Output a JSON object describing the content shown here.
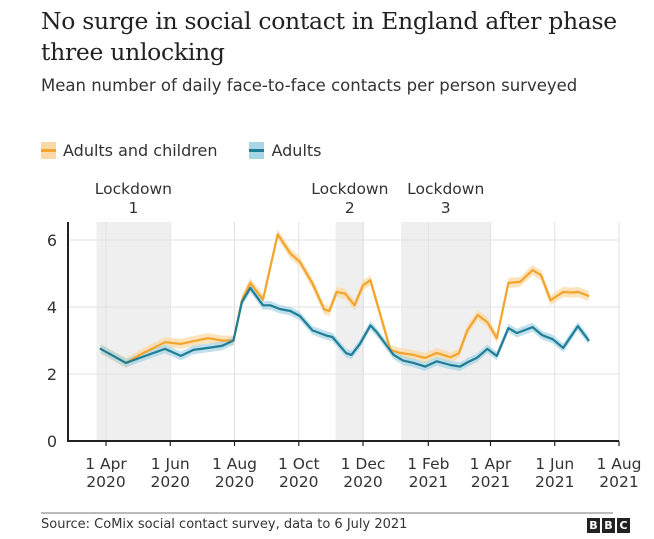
{
  "title": "No surge in social contact in England after phase three unlocking",
  "subtitle": "Mean number of daily face-to-face contacts per person surveyed",
  "legend": [
    {
      "label": "Adults and children",
      "color": "#f2a42d",
      "band_color": "#fbd9a6"
    },
    {
      "label": "Adults",
      "color": "#1f7d96",
      "band_color": "#a9d6e5"
    }
  ],
  "footer": {
    "source": "Source: CoMix social contact survey, data to 6 July 2021",
    "logo_letters": [
      "B",
      "B",
      "C"
    ]
  },
  "chart_data": {
    "type": "line",
    "title": "No surge in social contact in England after phase three unlocking",
    "subtitle": "Mean number of daily face-to-face contacts per person surveyed",
    "xlabel": "",
    "ylabel": "",
    "ylim": [
      0,
      6.5
    ],
    "yticks": [
      0,
      2,
      4,
      6
    ],
    "xlim": [
      "2020-03-15",
      "2021-08-01"
    ],
    "xticks": [
      {
        "date": "2020-04-01",
        "label": [
          "1 Apr",
          "2020"
        ]
      },
      {
        "date": "2020-06-01",
        "label": [
          "1 Jun",
          "2020"
        ]
      },
      {
        "date": "2020-08-01",
        "label": [
          "1 Aug",
          "2020"
        ]
      },
      {
        "date": "2020-10-01",
        "label": [
          "1 Oct",
          "2020"
        ]
      },
      {
        "date": "2020-12-01",
        "label": [
          "1 Dec",
          "2020"
        ]
      },
      {
        "date": "2021-02-01",
        "label": [
          "1 Feb",
          "2021"
        ]
      },
      {
        "date": "2021-04-01",
        "label": [
          "1 Apr",
          "2021"
        ]
      },
      {
        "date": "2021-06-01",
        "label": [
          "1 Jun",
          "2021"
        ]
      },
      {
        "date": "2021-08-01",
        "label": [
          "1 Aug",
          "2021"
        ]
      }
    ],
    "grid": true,
    "legend_position": "top-left",
    "annotations": [
      {
        "label": [
          "Lockdown",
          "1"
        ],
        "start": "2020-03-23",
        "end": "2020-06-01"
      },
      {
        "label": [
          "Lockdown",
          "2"
        ],
        "start": "2020-11-05",
        "end": "2020-12-02"
      },
      {
        "label": [
          "Lockdown",
          "3"
        ],
        "start": "2021-01-06",
        "end": "2021-04-01"
      }
    ],
    "series": [
      {
        "name": "Adults and children",
        "color": "#f2a42d",
        "band_halfwidth": 0.15,
        "points": [
          [
            "2020-03-27",
            2.75
          ],
          [
            "2020-04-20",
            2.33
          ],
          [
            "2020-05-03",
            2.57
          ],
          [
            "2020-05-27",
            2.95
          ],
          [
            "2020-06-11",
            2.9
          ],
          [
            "2020-06-23",
            2.98
          ],
          [
            "2020-07-07",
            3.07
          ],
          [
            "2020-07-20",
            3.0
          ],
          [
            "2020-07-31",
            3.0
          ],
          [
            "2020-08-08",
            4.2
          ],
          [
            "2020-08-16",
            4.72
          ],
          [
            "2020-08-28",
            4.22
          ],
          [
            "2020-09-11",
            6.17
          ],
          [
            "2020-09-23",
            5.6
          ],
          [
            "2020-10-02",
            5.35
          ],
          [
            "2020-10-14",
            4.7
          ],
          [
            "2020-10-25",
            3.93
          ],
          [
            "2020-10-30",
            3.88
          ],
          [
            "2020-11-06",
            4.45
          ],
          [
            "2020-11-14",
            4.4
          ],
          [
            "2020-11-23",
            4.05
          ],
          [
            "2020-12-01",
            4.65
          ],
          [
            "2020-12-08",
            4.8
          ],
          [
            "2020-12-27",
            2.72
          ],
          [
            "2021-01-05",
            2.63
          ],
          [
            "2021-01-18",
            2.57
          ],
          [
            "2021-01-29",
            2.48
          ],
          [
            "2021-02-09",
            2.63
          ],
          [
            "2021-02-22",
            2.5
          ],
          [
            "2021-03-02",
            2.62
          ],
          [
            "2021-03-10",
            3.3
          ],
          [
            "2021-03-20",
            3.76
          ],
          [
            "2021-03-29",
            3.55
          ],
          [
            "2021-04-07",
            3.07
          ],
          [
            "2021-04-18",
            4.72
          ],
          [
            "2021-04-29",
            4.75
          ],
          [
            "2021-05-11",
            5.1
          ],
          [
            "2021-05-19",
            4.95
          ],
          [
            "2021-05-28",
            4.2
          ],
          [
            "2021-06-09",
            4.45
          ],
          [
            "2021-06-17",
            4.43
          ],
          [
            "2021-06-23",
            4.45
          ],
          [
            "2021-07-03",
            4.33
          ]
        ]
      },
      {
        "name": "Adults",
        "color": "#1f7d96",
        "band_halfwidth": 0.13,
        "points": [
          [
            "2020-03-27",
            2.75
          ],
          [
            "2020-04-20",
            2.33
          ],
          [
            "2020-05-03",
            2.48
          ],
          [
            "2020-05-27",
            2.75
          ],
          [
            "2020-06-11",
            2.54
          ],
          [
            "2020-06-23",
            2.72
          ],
          [
            "2020-07-07",
            2.78
          ],
          [
            "2020-07-20",
            2.84
          ],
          [
            "2020-07-31",
            3.0
          ],
          [
            "2020-08-08",
            4.15
          ],
          [
            "2020-08-16",
            4.57
          ],
          [
            "2020-08-28",
            4.05
          ],
          [
            "2020-09-04",
            4.05
          ],
          [
            "2020-09-13",
            3.94
          ],
          [
            "2020-09-23",
            3.88
          ],
          [
            "2020-10-02",
            3.73
          ],
          [
            "2020-10-14",
            3.3
          ],
          [
            "2020-10-27",
            3.15
          ],
          [
            "2020-11-02",
            3.1
          ],
          [
            "2020-11-15",
            2.62
          ],
          [
            "2020-11-20",
            2.57
          ],
          [
            "2020-11-28",
            2.9
          ],
          [
            "2020-12-08",
            3.45
          ],
          [
            "2020-12-14",
            3.25
          ],
          [
            "2020-12-30",
            2.57
          ],
          [
            "2021-01-08",
            2.4
          ],
          [
            "2021-01-18",
            2.33
          ],
          [
            "2021-01-29",
            2.22
          ],
          [
            "2021-02-09",
            2.38
          ],
          [
            "2021-02-22",
            2.27
          ],
          [
            "2021-03-03",
            2.22
          ],
          [
            "2021-03-11",
            2.36
          ],
          [
            "2021-03-19",
            2.48
          ],
          [
            "2021-03-29",
            2.75
          ],
          [
            "2021-04-07",
            2.54
          ],
          [
            "2021-04-18",
            3.37
          ],
          [
            "2021-04-26",
            3.22
          ],
          [
            "2021-05-11",
            3.4
          ],
          [
            "2021-05-20",
            3.16
          ],
          [
            "2021-05-30",
            3.04
          ],
          [
            "2021-06-09",
            2.78
          ],
          [
            "2021-06-23",
            3.43
          ],
          [
            "2021-07-03",
            3.01
          ]
        ]
      }
    ]
  }
}
